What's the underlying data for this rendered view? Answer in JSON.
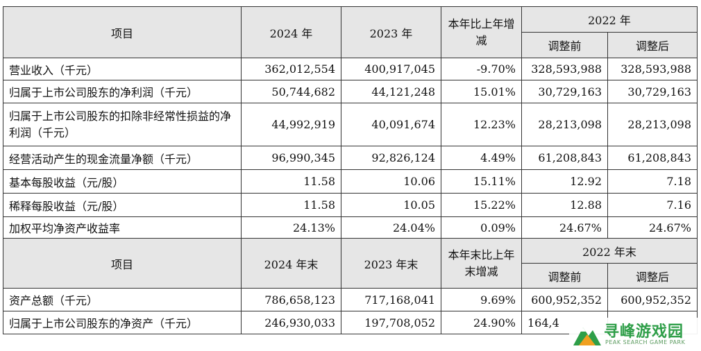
{
  "section1": {
    "col_item": "项目",
    "col_2024": "2024 年",
    "col_2023": "2023 年",
    "col_change": "本年比上年增减",
    "col_2022": "2022 年",
    "col_before": "调整前",
    "col_after": "调整后",
    "rows": [
      {
        "label": "营业收入（千元）",
        "v2024": "362,012,554",
        "v2023": "400,917,045",
        "change": "-9.70%",
        "before": "328,593,988",
        "after": "328,593,988"
      },
      {
        "label": "归属于上市公司股东的净利润（千元）",
        "v2024": "50,744,682",
        "v2023": "44,121,248",
        "change": "15.01%",
        "before": "30,729,163",
        "after": "30,729,163"
      },
      {
        "label": "归属于上市公司股东的扣除非经常性损益的净利润（千元）",
        "v2024": "44,992,919",
        "v2023": "40,091,674",
        "change": "12.23%",
        "before": "28,213,098",
        "after": "28,213,098"
      },
      {
        "label": "经营活动产生的现金流量净额（千元）",
        "v2024": "96,990,345",
        "v2023": "92,826,124",
        "change": "4.49%",
        "before": "61,208,843",
        "after": "61,208,843"
      },
      {
        "label": "基本每股收益（元/股）",
        "v2024": "11.58",
        "v2023": "10.06",
        "change": "15.11%",
        "before": "12.92",
        "after": "7.18"
      },
      {
        "label": "稀释每股收益（元/股）",
        "v2024": "11.58",
        "v2023": "10.05",
        "change": "15.22%",
        "before": "12.88",
        "after": "7.16"
      },
      {
        "label": "加权平均净资产收益率",
        "v2024": "24.13%",
        "v2023": "24.04%",
        "change": "0.09%",
        "before": "24.67%",
        "after": "24.67%"
      }
    ]
  },
  "section2": {
    "col_item": "项目",
    "col_2024": "2024 年末",
    "col_2023": "2023 年末",
    "col_change": "本年末比上年末增减",
    "col_2022": "2022 年末",
    "col_before": "调整前",
    "col_after": "调整后",
    "rows": [
      {
        "label": "资产总额（千元）",
        "v2024": "786,658,123",
        "v2023": "717,168,041",
        "change": "9.69%",
        "before": "600,952,352",
        "after": "600,952,352"
      },
      {
        "label": "归属于上市公司股东的净资产（千元）",
        "v2024": "246,930,033",
        "v2023": "197,708,052",
        "change": "24.90%",
        "before": "164,4",
        "after": ""
      }
    ]
  },
  "watermark": {
    "name": "寻峰游戏园",
    "sub": "PEAK SEARCH GAME PARK"
  }
}
